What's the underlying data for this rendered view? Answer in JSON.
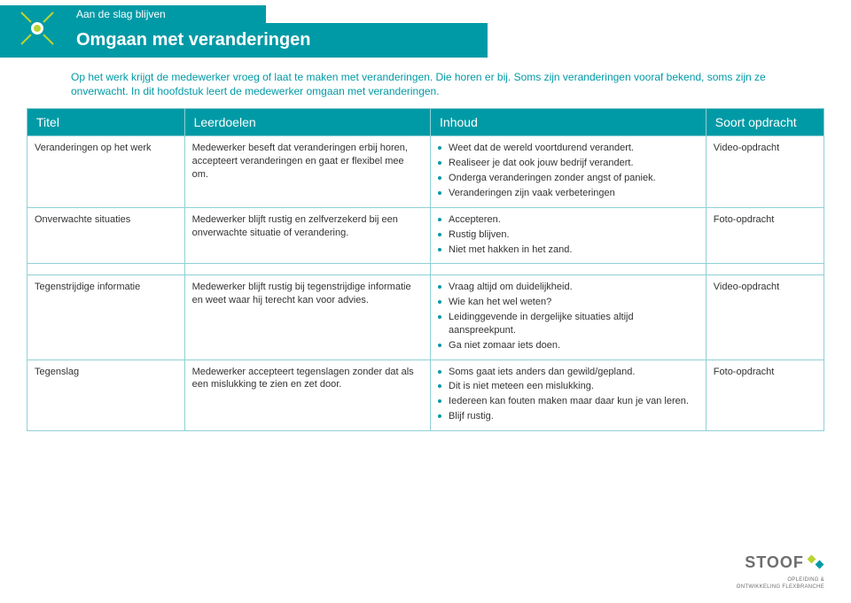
{
  "header": {
    "breadcrumb": "Aan de slag blijven",
    "title": "Omgaan met veranderingen"
  },
  "intro": "Op het werk krijgt de medewerker vroeg of laat te maken met veranderingen. Die horen er bij. Soms zijn veranderingen vooraf bekend, soms zijn ze onverwacht. In dit hoofdstuk leert de medewerker omgaan met veranderingen.",
  "columns": {
    "titel": "Titel",
    "leerdoelen": "Leerdoelen",
    "inhoud": "Inhoud",
    "soort": "Soort opdracht"
  },
  "rows": [
    {
      "titel": "Veranderingen op het werk",
      "leerdoelen": "Medewerker beseft dat veranderingen erbij horen, accepteert veranderingen en gaat er flexibel mee om.",
      "inhoud": [
        "Weet dat de wereld voortdurend verandert.",
        "Realiseer je dat ook jouw bedrijf verandert.",
        "Onderga veranderingen zonder angst of paniek.",
        "Veranderingen zijn vaak verbeteringen"
      ],
      "soort": "Video-opdracht"
    },
    {
      "titel": "Onverwachte situaties",
      "leerdoelen": "Medewerker blijft rustig en zelfverzekerd bij een onverwachte situatie of verandering.",
      "inhoud": [
        "Accepteren.",
        "Rustig blijven.",
        "Niet met hakken in het zand."
      ],
      "soort": "Foto-opdracht"
    },
    {
      "titel": "Tegenstrijdige informatie",
      "leerdoelen": "Medewerker blijft rustig bij tegenstrijdige informatie en weet waar hij terecht kan voor advies.",
      "inhoud": [
        "Vraag altijd om duidelijkheid.",
        "Wie kan het wel weten?",
        "Leidinggevende in dergelijke situaties altijd aanspreekpunt.",
        "Ga niet zomaar iets doen."
      ],
      "soort": "Video-opdracht"
    },
    {
      "titel": "Tegenslag",
      "leerdoelen": "Medewerker accepteert tegenslagen zonder dat als een mislukking te zien en zet door.",
      "inhoud": [
        "Soms gaat iets anders dan gewild/gepland.",
        "Dit is niet meteen een mislukking.",
        "Iedereen kan fouten maken maar daar kun je van leren.",
        "Blijf rustig."
      ],
      "soort": "Foto-opdracht"
    }
  ],
  "footer": {
    "brand": "STOOF",
    "sub1": "OPLEIDING &",
    "sub2": "ONTWIKKELING FLEXBRANCHE"
  },
  "colors": {
    "teal": "#009aa6",
    "border": "#8fd0d6",
    "lime": "#b8d432",
    "grey": "#6e6e6e"
  }
}
